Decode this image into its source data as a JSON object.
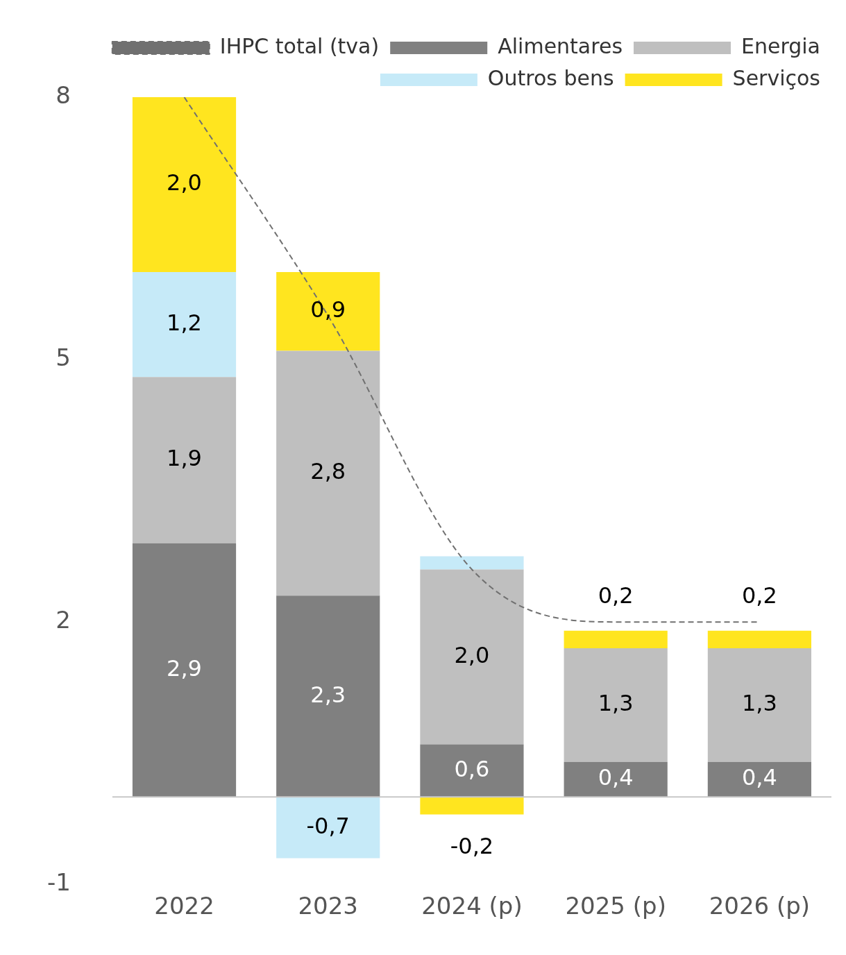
{
  "chart_data": {
    "type": "bar",
    "stacked": true,
    "categories": [
      "2022",
      "2023",
      "2024 (p)",
      "2025 (p)",
      "2026 (p)"
    ],
    "series": [
      {
        "name": "Alimentares",
        "color": "#808080",
        "values": [
          2.9,
          2.3,
          0.6,
          0.4,
          0.4
        ],
        "value_labels": [
          "2,9",
          "2,3",
          "0,6",
          "0,4",
          "0,4"
        ]
      },
      {
        "name": "Energia",
        "color": "#bfbfbf",
        "values": [
          1.9,
          2.8,
          2.0,
          1.3,
          1.3
        ],
        "value_labels": [
          "1,9",
          "2,8",
          "2,0",
          "1,3",
          "1,3"
        ]
      },
      {
        "name": "Outros bens",
        "color": "#c6eaf8",
        "values": [
          1.2,
          -0.7,
          0.15,
          null,
          null
        ],
        "value_labels": [
          "1,2",
          "-0,7",
          null,
          null,
          null
        ]
      },
      {
        "name": "Serviços",
        "color": "#ffe51f",
        "values": [
          2.0,
          0.9,
          -0.2,
          0.2,
          0.2
        ],
        "value_labels": [
          "2,0",
          "0,9",
          "-0,2",
          "0,2",
          "0,2"
        ]
      },
      {
        "name": "IHPC total (tva)",
        "type": "line",
        "color": "#707070",
        "line_style": "dashed",
        "marker": "none",
        "values": [
          8.0,
          5.5,
          2.6,
          2.0,
          2.0
        ]
      }
    ],
    "ylim": [
      -1,
      8
    ],
    "yticks": [
      -1,
      2,
      5,
      8
    ],
    "grid": false,
    "legend": "top right",
    "ref_lines": [
      {
        "axis": "y",
        "value": 0,
        "color": "#c8c8c8"
      }
    ]
  }
}
